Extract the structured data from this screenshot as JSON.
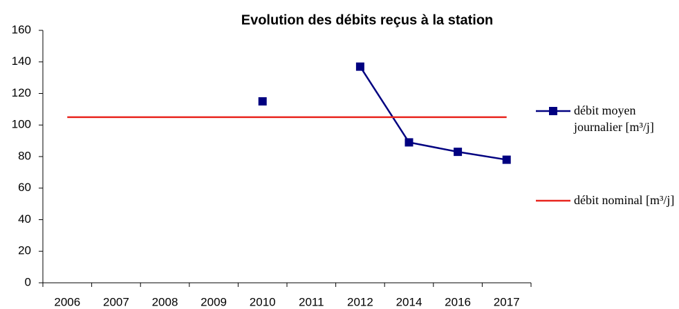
{
  "chart_data": {
    "type": "line",
    "title": "Evolution des débits reçus à la station",
    "categories": [
      "2006",
      "2007",
      "2008",
      "2009",
      "2010",
      "2011",
      "2012",
      "2014",
      "2016",
      "2017"
    ],
    "series": [
      {
        "name": "débit moyen journalier [m³/j]",
        "color": "#000080",
        "marker": "square",
        "values": [
          null,
          null,
          null,
          null,
          115,
          null,
          137,
          89,
          83,
          78
        ]
      },
      {
        "name": "débit nominal [m³/j]",
        "color": "#e8231c",
        "marker": "none",
        "values": [
          105,
          105,
          105,
          105,
          105,
          105,
          105,
          105,
          105,
          105
        ]
      }
    ],
    "ylim": [
      0,
      160
    ],
    "yticks": [
      0,
      20,
      40,
      60,
      80,
      100,
      120,
      140,
      160
    ],
    "grid": false,
    "legend": "right"
  }
}
